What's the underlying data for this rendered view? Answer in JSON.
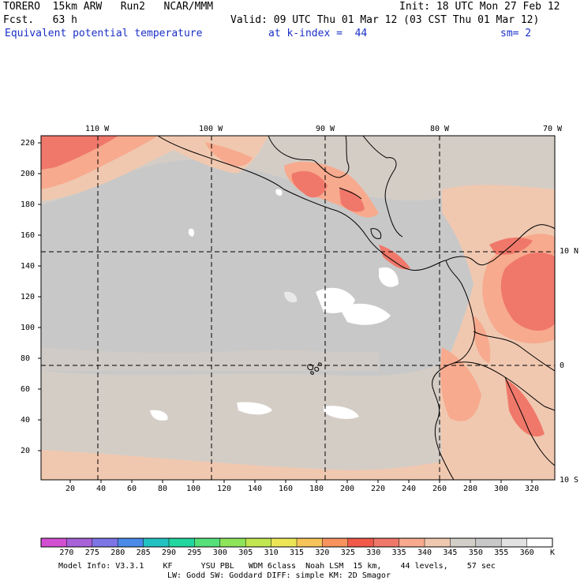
{
  "header": {
    "run_title": "TORERO  15km ARW   Run2   NCAR/MMM",
    "init": "Init: 18 UTC Mon 27 Feb 12",
    "fcst": "Fcst.   63 h",
    "valid": "Valid: 09 UTC Thu 01 Mar 12 (03 CST Thu 01 Mar 12)",
    "field": "Equivalent potential temperature",
    "level": "at k-index =  44",
    "smoothing": "sm= 2"
  },
  "map": {
    "lon_labels": [
      "110 W",
      "100 W",
      "90 W",
      "80 W",
      "70 W"
    ],
    "lat_labels": [
      "10 N",
      "0",
      "10 S"
    ],
    "y_ticks": [
      "220",
      "200",
      "180",
      "160",
      "140",
      "120",
      "100",
      "80",
      "60",
      "40",
      "20"
    ],
    "x_ticks": [
      "20",
      "40",
      "60",
      "80",
      "100",
      "120",
      "140",
      "160",
      "180",
      "200",
      "220",
      "240",
      "260",
      "280",
      "300",
      "320"
    ]
  },
  "colorbar": {
    "labels": [
      "270",
      "275",
      "280",
      "285",
      "290",
      "295",
      "300",
      "305",
      "310",
      "315",
      "320",
      "325",
      "330",
      "335",
      "340",
      "345",
      "350",
      "355",
      "360"
    ],
    "unit": "K",
    "colors": [
      "#d24fd2",
      "#a862d8",
      "#7d74e6",
      "#4a8ae8",
      "#22c2c2",
      "#22d6a0",
      "#55e07a",
      "#8ee45a",
      "#c2e650",
      "#ece657",
      "#f6c45a",
      "#f7935f",
      "#f15a4a",
      "#f0786a",
      "#f7aa8e",
      "#f0c8b0",
      "#d2cec8",
      "#c8c8c8",
      "#e2e2e2",
      "#ffffff"
    ]
  },
  "footer": {
    "line1": "Model Info: V3.3.1    KF      YSU PBL   WDM 6class  Noah LSM  15 km,    44 levels,    57 sec",
    "line2": "LW: Godd SW: Goddard DIFF: simple KM: 2D Smagor"
  }
}
